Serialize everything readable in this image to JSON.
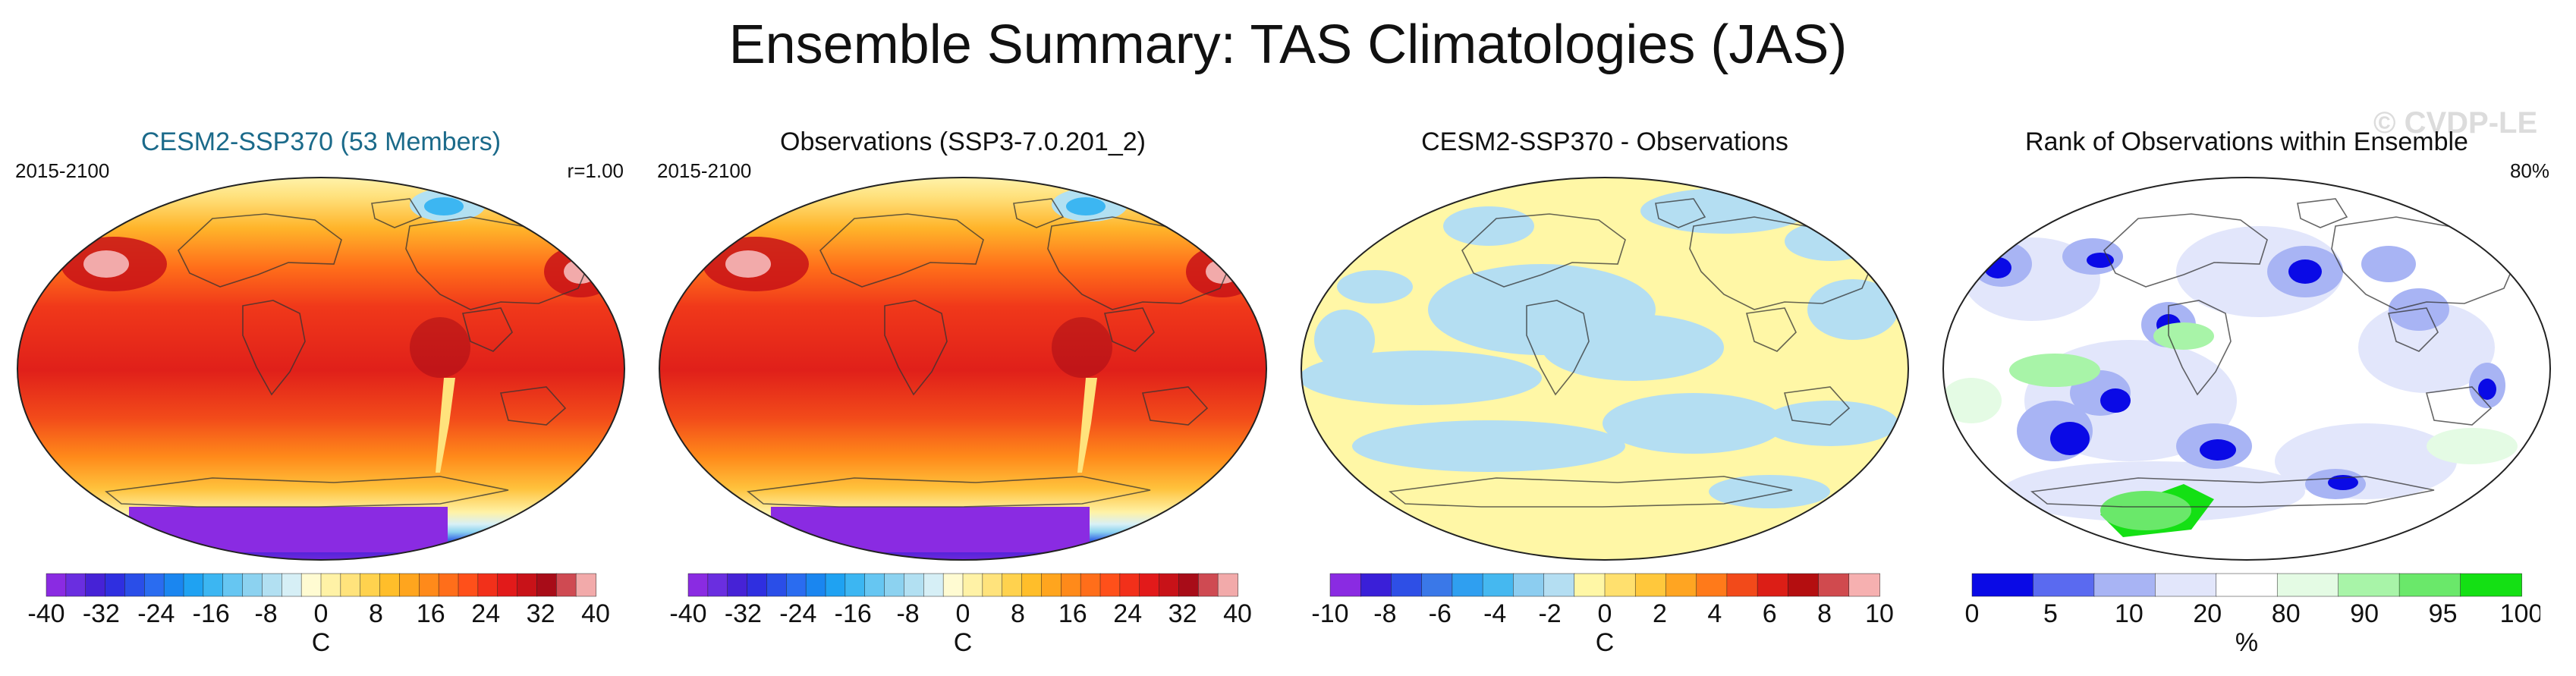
{
  "title": "Ensemble Summary: TAS Climatologies (JAS)",
  "watermark": "© CVDP-LE",
  "chart_data": [
    {
      "type": "heatmap",
      "title": "CESM2-SSP370 (53 Members)",
      "title_color": "#1b6a8a",
      "left_label": "2015-2100",
      "right_label": "r=1.00",
      "variant": "tas",
      "colorbar": {
        "unit": "C",
        "ticks": [
          "-40",
          "-32",
          "-24",
          "-16",
          "-8",
          "0",
          "8",
          "16",
          "24",
          "32",
          "40"
        ],
        "levels": [
          "#8a2be2",
          "#6a2ee0",
          "#4622d6",
          "#2f2fe0",
          "#2a4ee8",
          "#2a6cf0",
          "#1a86f0",
          "#1fa2f2",
          "#3cb6f2",
          "#66c6f2",
          "#8cd2f0",
          "#b2e0f2",
          "#d6eff6",
          "#fffbd2",
          "#fff2a6",
          "#ffe37c",
          "#ffd24e",
          "#ffbe2a",
          "#ffa51e",
          "#ff8a1a",
          "#ff6e1a",
          "#ff501a",
          "#f2301a",
          "#e21a1a",
          "#c81218",
          "#a80c18",
          "#cf4a52",
          "#f2aaaa"
        ]
      }
    },
    {
      "type": "heatmap",
      "title": "Observations (SSP3-7.0.201_2)",
      "title_color": "#111111",
      "left_label": "2015-2100",
      "right_label": "",
      "variant": "tas",
      "colorbar": {
        "unit": "C",
        "ticks": [
          "-40",
          "-32",
          "-24",
          "-16",
          "-8",
          "0",
          "8",
          "16",
          "24",
          "32",
          "40"
        ],
        "levels": [
          "#8a2be2",
          "#6a2ee0",
          "#4622d6",
          "#2f2fe0",
          "#2a4ee8",
          "#2a6cf0",
          "#1a86f0",
          "#1fa2f2",
          "#3cb6f2",
          "#66c6f2",
          "#8cd2f0",
          "#b2e0f2",
          "#d6eff6",
          "#fffbd2",
          "#fff2a6",
          "#ffe37c",
          "#ffd24e",
          "#ffbe2a",
          "#ffa51e",
          "#ff8a1a",
          "#ff6e1a",
          "#ff501a",
          "#f2301a",
          "#e21a1a",
          "#c81218",
          "#a80c18",
          "#cf4a52",
          "#f2aaaa"
        ]
      }
    },
    {
      "type": "heatmap",
      "title": "CESM2-SSP370 - Observations",
      "title_color": "#111111",
      "left_label": "",
      "right_label": "",
      "variant": "diff",
      "colorbar": {
        "unit": "C",
        "ticks": [
          "-10",
          "-8",
          "-6",
          "-4",
          "-2",
          "0",
          "2",
          "4",
          "6",
          "8",
          "10"
        ],
        "levels": [
          "#8a2be2",
          "#3a1fd8",
          "#2e4fe6",
          "#3a78e8",
          "#2f9ff0",
          "#45b8f0",
          "#8ccdf0",
          "#b4def2",
          "#fff7a6",
          "#ffe06e",
          "#ffc83c",
          "#ffa522",
          "#ff7a1a",
          "#f24a1a",
          "#dc1e16",
          "#b40e10",
          "#d04a4e",
          "#f6b0b0"
        ]
      }
    },
    {
      "type": "heatmap",
      "title": "Rank of Observations within Ensemble",
      "title_color": "#111111",
      "left_label": "",
      "right_label": "80%",
      "variant": "rank",
      "colorbar": {
        "unit": "%",
        "ticks": [
          "0",
          "5",
          "10",
          "20",
          "80",
          "90",
          "95",
          "100"
        ],
        "levels": [
          "#0a0ae6",
          "#5a6af0",
          "#a8b4f4",
          "#e2e6fb",
          "#ffffff",
          "#e4fbe4",
          "#a8f4a8",
          "#6ae86a",
          "#14e014"
        ]
      }
    }
  ]
}
